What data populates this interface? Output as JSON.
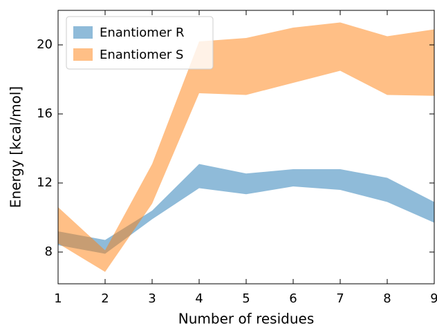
{
  "chart_data": {
    "type": "band",
    "x_label": "Number of residues",
    "y_label": "Energy [kcal/mol]",
    "x": [
      1,
      2,
      3,
      4,
      5,
      6,
      7,
      8,
      9
    ],
    "series": [
      {
        "name": "Enantiomer R",
        "color": "rgba(31,119,180,0.5)",
        "lower": [
          8.4,
          7.9,
          9.9,
          11.7,
          11.35,
          11.8,
          11.6,
          10.9,
          9.7
        ],
        "upper": [
          9.2,
          8.7,
          10.4,
          13.1,
          12.55,
          12.8,
          12.8,
          12.3,
          10.9
        ]
      },
      {
        "name": "Enantiomer S",
        "color": "rgba(255,127,14,0.5)",
        "lower": [
          8.5,
          6.85,
          10.8,
          17.2,
          17.1,
          17.8,
          18.5,
          17.1,
          17.05
        ],
        "upper": [
          10.6,
          8.1,
          13.1,
          20.2,
          20.4,
          21.0,
          21.3,
          20.5,
          20.9
        ]
      }
    ],
    "xlim": [
      1,
      9
    ],
    "xticks": [
      1,
      2,
      3,
      4,
      5,
      6,
      7,
      8,
      9
    ],
    "ylim": [
      6.16,
      22
    ],
    "yticks": [
      8,
      12,
      16,
      20
    ],
    "legend": "upper left"
  }
}
